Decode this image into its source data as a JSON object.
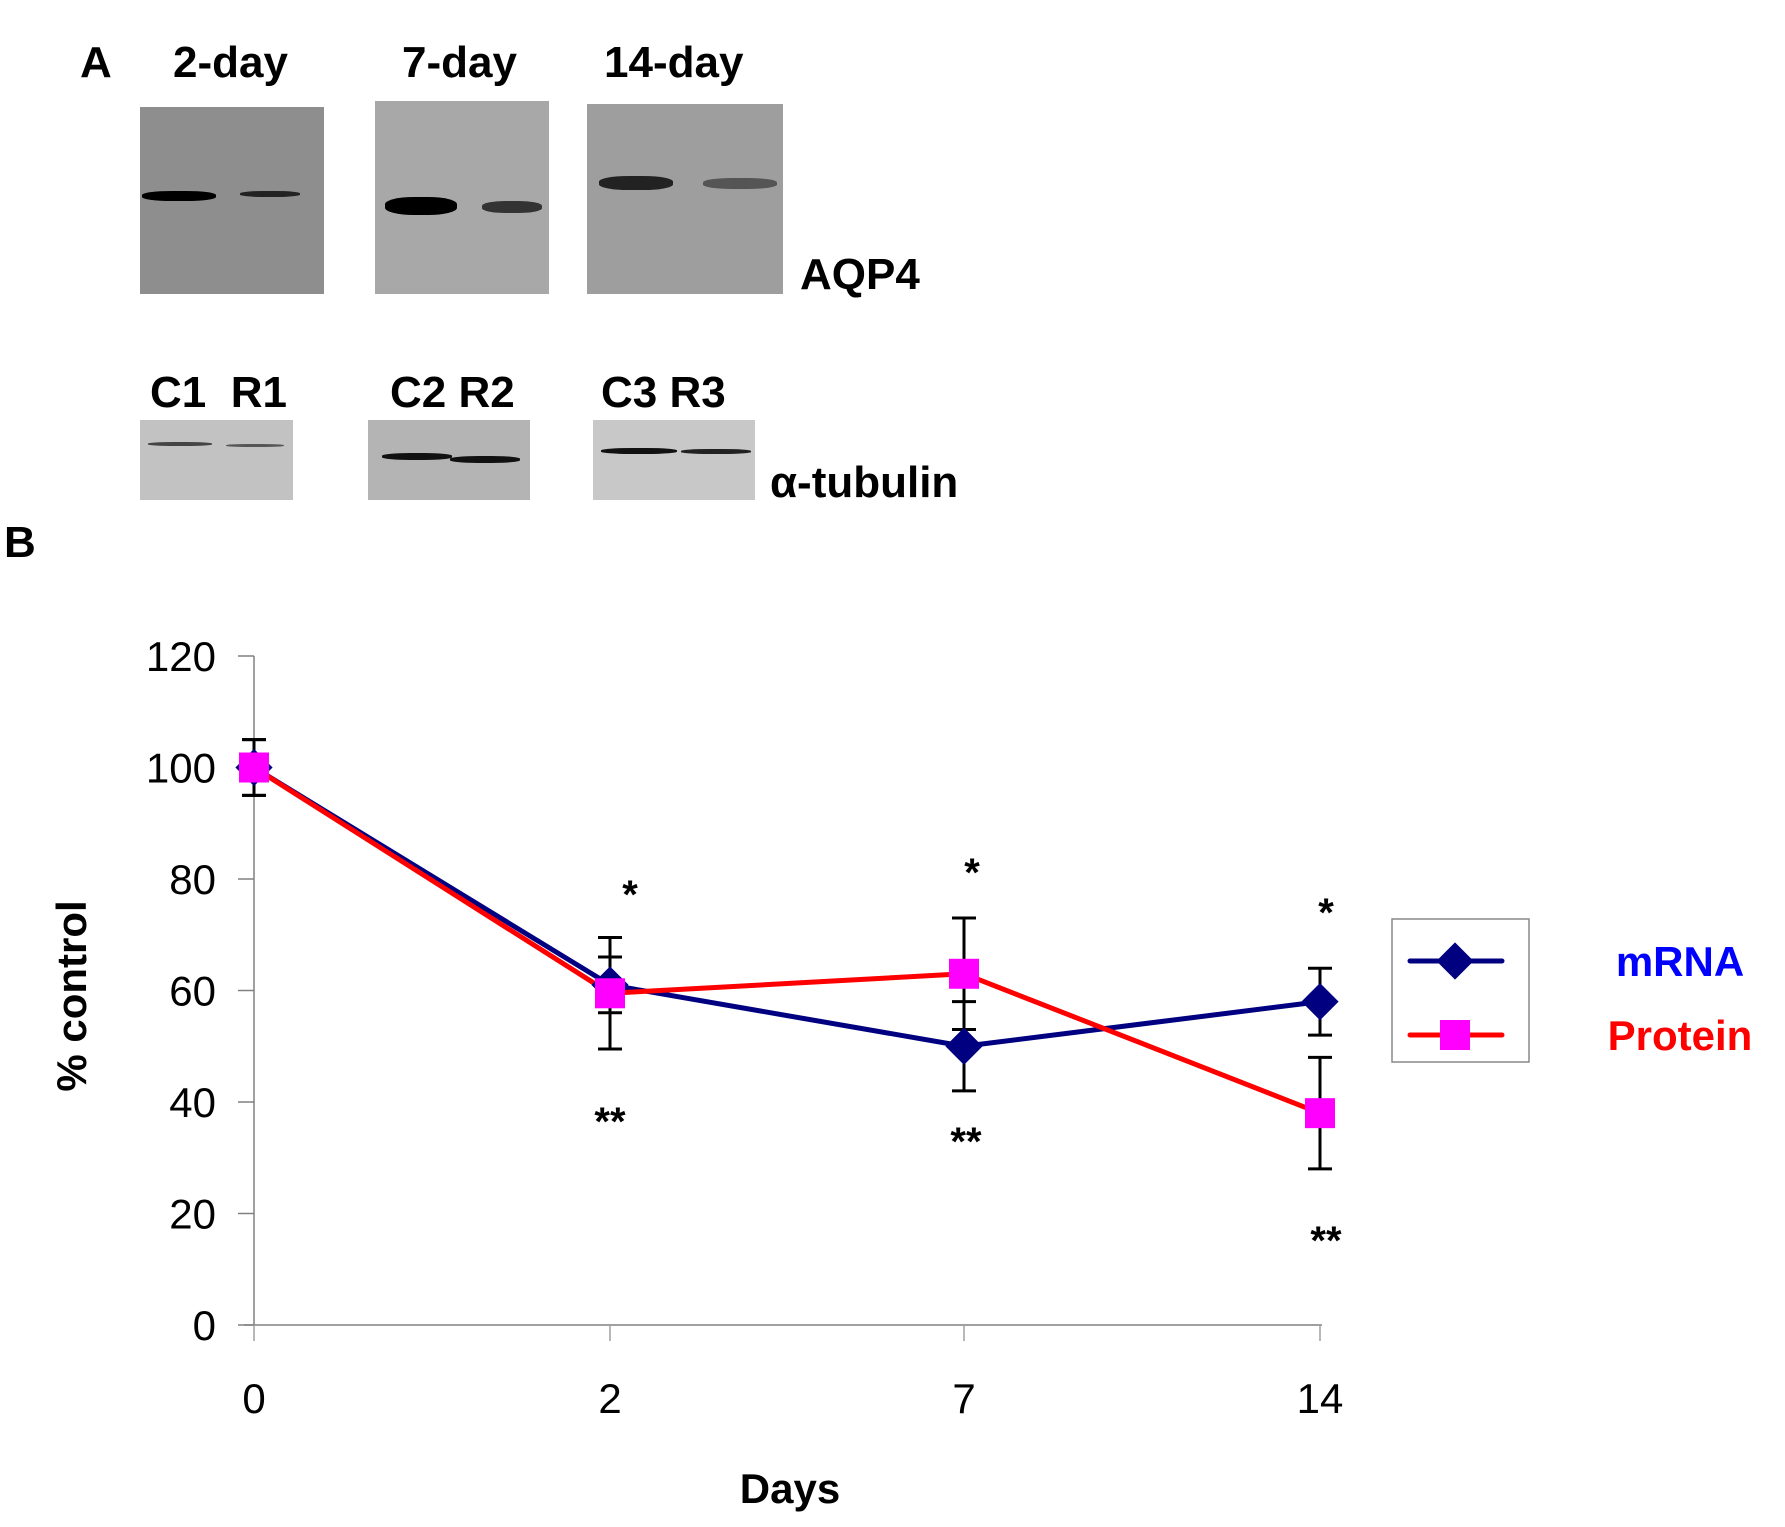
{
  "panel_a": {
    "letter": "A",
    "blots": [
      {
        "title": "2-day",
        "lanes": "C1  R1",
        "control_band": 0.95,
        "treated_band": 0.55
      },
      {
        "title": "7-day",
        "lanes": "C2 R2",
        "control_band": 0.95,
        "treated_band": 0.6
      },
      {
        "title": "14-day",
        "lanes": "C3 R3",
        "control_band": 0.7,
        "treated_band": 0.45
      }
    ],
    "top_protein_label": "AQP4",
    "bottom_protein_label": "α-tubulin"
  },
  "panel_b": {
    "letter": "B"
  },
  "chart_data": {
    "type": "line",
    "title": "",
    "xlabel": "Days",
    "ylabel": "% control",
    "categories": [
      "0",
      "2",
      "7",
      "14"
    ],
    "ylim": [
      0,
      120
    ],
    "yticks": [
      0,
      20,
      40,
      60,
      80,
      100,
      120
    ],
    "grid": false,
    "legend_position": "right",
    "series": [
      {
        "name": "mRNA",
        "line_color": "#000080",
        "marker": "diamond",
        "marker_color": "#000080",
        "label_color": "#0000ff",
        "values": [
          100,
          61,
          50,
          58
        ],
        "errors": [
          5,
          5,
          8,
          6
        ]
      },
      {
        "name": "Protein",
        "line_color": "#ff0000",
        "marker": "square",
        "marker_color": "#ff00ff",
        "label_color": "#ff0000",
        "values": [
          100,
          59.5,
          63,
          38
        ],
        "errors": [
          5,
          10,
          10,
          10
        ]
      }
    ],
    "annotations": [
      {
        "category": "2",
        "text": "*",
        "position": "above"
      },
      {
        "category": "2",
        "text": "**",
        "position": "below"
      },
      {
        "category": "7",
        "text": "*",
        "position": "above"
      },
      {
        "category": "7",
        "text": "**",
        "position": "below"
      },
      {
        "category": "14",
        "text": "*",
        "position": "above"
      },
      {
        "category": "14",
        "text": "**",
        "position": "below"
      }
    ]
  }
}
